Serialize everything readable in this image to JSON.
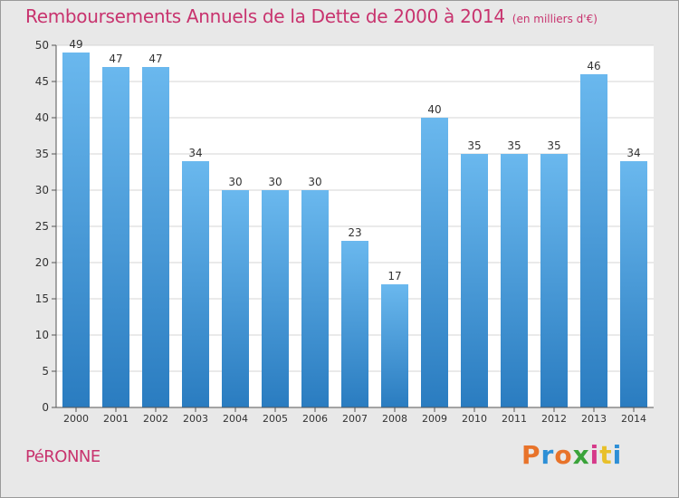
{
  "header": {
    "title": "Remboursements Annuels de la Dette de 2000 à 2014",
    "unit": "(en milliers d'€)"
  },
  "footer": {
    "commune": "PéRONNE",
    "brand": "Proxiti",
    "brand_colors": [
      "#e8732a",
      "#2d8fd6",
      "#e8732a",
      "#3aa33a",
      "#d63a8a",
      "#e8c02a",
      "#2d8fd6"
    ]
  },
  "chart_data": {
    "type": "bar",
    "title": "Remboursements Annuels de la Dette de 2000 à 2014",
    "xlabel": "",
    "ylabel": "",
    "categories": [
      "2000",
      "2001",
      "2002",
      "2003",
      "2004",
      "2005",
      "2006",
      "2007",
      "2008",
      "2009",
      "2010",
      "2011",
      "2012",
      "2013",
      "2014"
    ],
    "values": [
      49,
      47,
      47,
      34,
      30,
      30,
      30,
      23,
      17,
      40,
      35,
      35,
      35,
      46,
      34
    ],
    "ylim": [
      0,
      50
    ],
    "yticks": [
      0,
      5,
      10,
      15,
      20,
      25,
      30,
      35,
      40,
      45,
      50
    ],
    "grid": true,
    "bar_color_top": "#6ab8ee",
    "bar_color_bottom": "#2a7cc0",
    "grid_color": "#d6d6d6"
  }
}
